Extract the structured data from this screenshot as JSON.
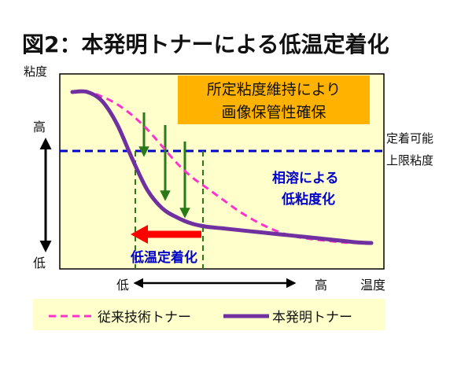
{
  "chart_data": {
    "type": "line",
    "title": "図2：本発明トナーによる低温定着化",
    "ylabel": "粘度",
    "xlabel": "温度",
    "y_high_label": "高",
    "y_low_label": "低",
    "x_low_label": "低",
    "x_high_label": "高",
    "x": [
      0,
      0.05,
      0.1,
      0.15,
      0.2,
      0.25,
      0.3,
      0.35,
      0.4,
      0.45,
      0.5,
      0.55,
      0.6,
      0.65,
      0.7,
      0.75,
      0.8,
      0.85,
      0.9,
      0.95,
      1
    ],
    "xlim": [
      0,
      1
    ],
    "ylim": [
      0,
      1
    ],
    "series": [
      {
        "name": "従来技術トナー",
        "color": "#ff33cc",
        "style": "dashed",
        "values": [
          0.99,
          0.99,
          0.96,
          0.91,
          0.84,
          0.75,
          0.64,
          0.53,
          0.44,
          0.37,
          0.3,
          0.23,
          0.17,
          0.12,
          0.08,
          0.055,
          0.04,
          0.03,
          0.02,
          0.015,
          0.01
        ]
      },
      {
        "name": "本発明トナー",
        "color": "#7030a0",
        "style": "solid",
        "values": [
          0.99,
          0.99,
          0.93,
          0.78,
          0.56,
          0.36,
          0.24,
          0.18,
          0.14,
          0.12,
          0.11,
          0.1,
          0.09,
          0.08,
          0.07,
          0.06,
          0.05,
          0.04,
          0.03,
          0.02,
          0.015
        ]
      }
    ],
    "reference_line": {
      "y": 0.66,
      "color": "#0000cc",
      "label_line1": "定着可能",
      "label_line2": "上限粘度"
    },
    "annotation_box": {
      "line1": "所定粘度維持により",
      "line2": "画像保管性確保",
      "fill": "#ffb300"
    },
    "annotation_right_line1": "相溶による",
    "annotation_right_line2": "低粘度化",
    "annotation_shift_label": "低温定着化",
    "plot_background": "#ffffcc",
    "down_arrow_color": "#2a7a1a",
    "shift_arrow_color": "#ff0000",
    "legend": {
      "placement": "bottom",
      "background": "#ffffcc"
    }
  }
}
